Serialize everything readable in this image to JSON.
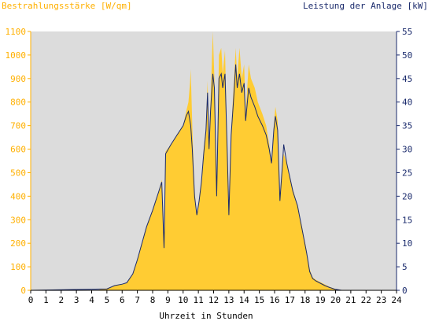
{
  "chart_data": {
    "type": "area",
    "title_left": "Bestrahlungsstärke [W/qm]",
    "title_right": "Leistung der Anlage [kW]",
    "xlabel": "Uhrzeit in Stunden",
    "x_ticks": [
      "0",
      "1",
      "2",
      "3",
      "4",
      "5",
      "6",
      "7",
      "8",
      "9",
      "10",
      "11",
      "12",
      "13",
      "14",
      "15",
      "16",
      "17",
      "18",
      "19",
      "20",
      "21",
      "22",
      "23",
      "24"
    ],
    "y_left_ticks": [
      "0",
      "100",
      "200",
      "300",
      "400",
      "500",
      "600",
      "700",
      "800",
      "900",
      "1000",
      "1100"
    ],
    "y_right_ticks": [
      "0",
      "5",
      "10",
      "15",
      "20",
      "25",
      "30",
      "35",
      "40",
      "45",
      "50",
      "55"
    ],
    "xlim": [
      0,
      24
    ],
    "ylim_left": [
      0,
      1100
    ],
    "ylim_right": [
      0,
      55
    ],
    "grid": false,
    "colors": {
      "plot_bg": "#dcdcdc",
      "irradiance_fill": "#ffcc33",
      "power_line": "#1a2a6c",
      "left_axis_text": "#ffb000",
      "right_axis_text": "#1a2a6c"
    },
    "series": [
      {
        "name": "Bestrahlungsstärke [W/qm]",
        "axis": "left",
        "style": "filled-area",
        "points": [
          [
            0,
            0
          ],
          [
            4.3,
            0
          ],
          [
            5.0,
            8
          ],
          [
            5.5,
            20
          ],
          [
            6.0,
            25
          ],
          [
            6.3,
            30
          ],
          [
            6.7,
            70
          ],
          [
            7.0,
            130
          ],
          [
            7.3,
            200
          ],
          [
            7.6,
            270
          ],
          [
            8.0,
            340
          ],
          [
            8.4,
            420
          ],
          [
            8.6,
            470
          ],
          [
            8.75,
            200
          ],
          [
            8.85,
            590
          ],
          [
            9.2,
            620
          ],
          [
            9.6,
            660
          ],
          [
            10.0,
            700
          ],
          [
            10.2,
            760
          ],
          [
            10.35,
            800
          ],
          [
            10.45,
            880
          ],
          [
            10.5,
            940
          ],
          [
            10.6,
            700
          ],
          [
            10.75,
            420
          ],
          [
            10.9,
            320
          ],
          [
            11.05,
            380
          ],
          [
            11.2,
            460
          ],
          [
            11.35,
            600
          ],
          [
            11.5,
            700
          ],
          [
            11.6,
            890
          ],
          [
            11.7,
            620
          ],
          [
            11.8,
            800
          ],
          [
            11.95,
            1100
          ],
          [
            12.05,
            900
          ],
          [
            12.2,
            400
          ],
          [
            12.35,
            1000
          ],
          [
            12.5,
            1030
          ],
          [
            12.6,
            920
          ],
          [
            12.75,
            1020
          ],
          [
            12.9,
            600
          ],
          [
            13.0,
            320
          ],
          [
            13.15,
            680
          ],
          [
            13.3,
            850
          ],
          [
            13.45,
            1030
          ],
          [
            13.55,
            900
          ],
          [
            13.7,
            1030
          ],
          [
            13.85,
            900
          ],
          [
            14.0,
            960
          ],
          [
            14.1,
            750
          ],
          [
            14.3,
            960
          ],
          [
            14.45,
            900
          ],
          [
            14.7,
            860
          ],
          [
            14.9,
            800
          ],
          [
            15.2,
            750
          ],
          [
            15.45,
            700
          ],
          [
            15.65,
            620
          ],
          [
            15.8,
            550
          ],
          [
            15.95,
            700
          ],
          [
            16.05,
            780
          ],
          [
            16.2,
            720
          ],
          [
            16.35,
            400
          ],
          [
            16.5,
            530
          ],
          [
            16.6,
            580
          ],
          [
            16.8,
            540
          ],
          [
            17.0,
            480
          ],
          [
            17.2,
            430
          ],
          [
            17.5,
            360
          ],
          [
            17.8,
            270
          ],
          [
            18.1,
            170
          ],
          [
            18.3,
            90
          ],
          [
            18.5,
            55
          ],
          [
            18.7,
            45
          ],
          [
            19.0,
            35
          ],
          [
            19.3,
            25
          ],
          [
            19.6,
            15
          ],
          [
            20.0,
            5
          ],
          [
            20.4,
            0
          ],
          [
            24,
            0
          ]
        ]
      },
      {
        "name": "Leistung der Anlage [kW]",
        "axis": "right",
        "style": "line",
        "points": [
          [
            0,
            0
          ],
          [
            5.0,
            0.3
          ],
          [
            5.5,
            1
          ],
          [
            6.0,
            1.3
          ],
          [
            6.3,
            1.6
          ],
          [
            6.7,
            3.5
          ],
          [
            7.0,
            6.5
          ],
          [
            7.3,
            10
          ],
          [
            7.6,
            13.5
          ],
          [
            8.0,
            17
          ],
          [
            8.4,
            21
          ],
          [
            8.6,
            23
          ],
          [
            8.75,
            9
          ],
          [
            8.85,
            29
          ],
          [
            9.2,
            31
          ],
          [
            9.6,
            33
          ],
          [
            10.0,
            35
          ],
          [
            10.2,
            37
          ],
          [
            10.35,
            38
          ],
          [
            10.5,
            35
          ],
          [
            10.6,
            30
          ],
          [
            10.75,
            20
          ],
          [
            10.9,
            16
          ],
          [
            11.05,
            19
          ],
          [
            11.2,
            23
          ],
          [
            11.35,
            29
          ],
          [
            11.5,
            34
          ],
          [
            11.6,
            42
          ],
          [
            11.7,
            30
          ],
          [
            11.8,
            38
          ],
          [
            11.95,
            46
          ],
          [
            12.05,
            43
          ],
          [
            12.2,
            20
          ],
          [
            12.35,
            45
          ],
          [
            12.5,
            46
          ],
          [
            12.6,
            43
          ],
          [
            12.75,
            46
          ],
          [
            12.9,
            29
          ],
          [
            13.0,
            16
          ],
          [
            13.15,
            33
          ],
          [
            13.3,
            40
          ],
          [
            13.45,
            48
          ],
          [
            13.55,
            43
          ],
          [
            13.7,
            46
          ],
          [
            13.85,
            42
          ],
          [
            14.0,
            44
          ],
          [
            14.1,
            36
          ],
          [
            14.3,
            43
          ],
          [
            14.45,
            41
          ],
          [
            14.7,
            39
          ],
          [
            14.9,
            37
          ],
          [
            15.2,
            35
          ],
          [
            15.45,
            33
          ],
          [
            15.65,
            30
          ],
          [
            15.8,
            27
          ],
          [
            15.95,
            34
          ],
          [
            16.05,
            37
          ],
          [
            16.2,
            34
          ],
          [
            16.35,
            19
          ],
          [
            16.5,
            26
          ],
          [
            16.6,
            31
          ],
          [
            16.8,
            27
          ],
          [
            17.0,
            24
          ],
          [
            17.2,
            21
          ],
          [
            17.5,
            18
          ],
          [
            17.8,
            13
          ],
          [
            18.1,
            8
          ],
          [
            18.3,
            4
          ],
          [
            18.5,
            2.5
          ],
          [
            18.7,
            2
          ],
          [
            19.0,
            1.5
          ],
          [
            19.3,
            1
          ],
          [
            19.6,
            0.6
          ],
          [
            20.0,
            0.2
          ],
          [
            20.4,
            0
          ],
          [
            24,
            0
          ]
        ]
      }
    ]
  }
}
